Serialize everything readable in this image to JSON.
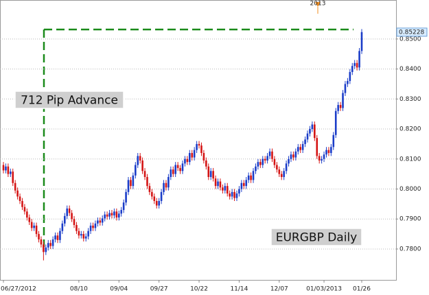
{
  "chart_data": {
    "type": "candlestick",
    "year_marker": "2013",
    "annotations": [
      "712 Pip Advance",
      "EURGBP Daily"
    ],
    "last_price": 0.85228,
    "up_color": "#1a3cc8",
    "down_color": "#d41414",
    "ylim": [
      0.7697,
      0.863
    ],
    "yticks": [
      {
        "value": 0.78,
        "label": "0.7800"
      },
      {
        "value": 0.79,
        "label": "0.7900"
      },
      {
        "value": 0.8,
        "label": "0.8000"
      },
      {
        "value": 0.81,
        "label": "0.8100"
      },
      {
        "value": 0.82,
        "label": "0.8200"
      },
      {
        "value": 0.83,
        "label": "0.8300"
      },
      {
        "value": 0.84,
        "label": "0.8400"
      },
      {
        "value": 0.85,
        "label": "0.8500"
      }
    ],
    "grid": true,
    "categories": [
      "06/27/2012",
      null,
      null,
      null,
      null,
      null,
      null,
      null,
      null,
      null,
      null,
      null,
      null,
      null,
      null,
      null,
      null,
      null,
      null,
      null,
      null,
      null,
      null,
      null,
      null,
      null,
      null,
      null,
      null,
      null,
      null,
      null,
      "08/10",
      null,
      null,
      null,
      null,
      null,
      null,
      null,
      null,
      null,
      null,
      null,
      null,
      null,
      null,
      null,
      null,
      "09/04",
      null,
      null,
      null,
      null,
      null,
      null,
      null,
      null,
      null,
      null,
      null,
      null,
      null,
      null,
      null,
      null,
      "09/27",
      null,
      null,
      null,
      null,
      null,
      null,
      null,
      null,
      null,
      null,
      null,
      null,
      null,
      null,
      null,
      null,
      "10/22",
      null,
      null,
      null,
      null,
      null,
      null,
      null,
      null,
      null,
      null,
      null,
      null,
      null,
      null,
      null,
      null,
      "11/14",
      null,
      null,
      null,
      null,
      null,
      null,
      null,
      null,
      null,
      null,
      null,
      null,
      null,
      null,
      null,
      null,
      "12/07",
      null,
      null,
      null,
      null,
      null,
      null,
      null,
      null,
      null,
      null,
      null,
      null,
      null,
      null,
      null,
      null,
      null,
      null,
      "01/03/2013",
      null,
      null,
      null,
      null,
      null,
      null,
      null,
      null,
      null,
      null,
      null,
      null,
      null,
      null,
      null,
      "01/26"
    ],
    "open": [
      0.808,
      0.8062,
      0.8075,
      0.805,
      0.8058,
      0.802,
      0.7995,
      0.7975,
      0.796,
      0.794,
      0.7925,
      0.7905,
      0.789,
      0.787,
      0.7878,
      0.785,
      0.7832,
      0.7815,
      0.779,
      0.7805,
      0.782,
      0.781,
      0.7832,
      0.7845,
      0.783,
      0.786,
      0.7885,
      0.791,
      0.7935,
      0.792,
      0.79,
      0.788,
      0.786,
      0.7845,
      0.785,
      0.7835,
      0.7842,
      0.786,
      0.7878,
      0.787,
      0.7885,
      0.7895,
      0.7888,
      0.7902,
      0.7915,
      0.7908,
      0.792,
      0.7912,
      0.7925,
      0.7905,
      0.7918,
      0.793,
      0.7955,
      0.799,
      0.803,
      0.801,
      0.8045,
      0.808,
      0.811,
      0.8095,
      0.806,
      0.804,
      0.801,
      0.799,
      0.7975,
      0.796,
      0.7945,
      0.796,
      0.799,
      0.802,
      0.8005,
      0.804,
      0.8065,
      0.805,
      0.808,
      0.807,
      0.806,
      0.8085,
      0.81,
      0.809,
      0.812,
      0.8105,
      0.813,
      0.815,
      0.8145,
      0.812,
      0.8095,
      0.8075,
      0.804,
      0.806,
      0.8035,
      0.801,
      0.8025,
      0.8005,
      0.7995,
      0.801,
      0.7985,
      0.7975,
      0.799,
      0.797,
      0.7985,
      0.8,
      0.802,
      0.801,
      0.803,
      0.8045,
      0.803,
      0.806,
      0.8075,
      0.809,
      0.808,
      0.81,
      0.8095,
      0.811,
      0.8125,
      0.81,
      0.808,
      0.8065,
      0.805,
      0.804,
      0.806,
      0.8085,
      0.81,
      0.8115,
      0.8105,
      0.8125,
      0.814,
      0.813,
      0.815,
      0.8165,
      0.8185,
      0.82,
      0.8215,
      0.817,
      0.811,
      0.8095,
      0.81,
      0.8115,
      0.813,
      0.812,
      0.814,
      0.818,
      0.826,
      0.828,
      0.827,
      0.832,
      0.835,
      0.836,
      0.839,
      0.841,
      0.842,
      0.8405,
      0.846
    ],
    "high": [
      0.809,
      0.8085,
      0.8085,
      0.8068,
      0.8068,
      0.803,
      0.8005,
      0.7985,
      0.797,
      0.795,
      0.7935,
      0.7915,
      0.79,
      0.7888,
      0.7888,
      0.786,
      0.7842,
      0.7825,
      0.7815,
      0.783,
      0.783,
      0.7842,
      0.7855,
      0.7855,
      0.787,
      0.7895,
      0.792,
      0.7945,
      0.7945,
      0.793,
      0.791,
      0.789,
      0.787,
      0.786,
      0.786,
      0.7852,
      0.787,
      0.7888,
      0.7888,
      0.7895,
      0.7905,
      0.7905,
      0.7912,
      0.7925,
      0.7925,
      0.793,
      0.793,
      0.7935,
      0.7935,
      0.7928,
      0.794,
      0.7965,
      0.8,
      0.804,
      0.804,
      0.8055,
      0.809,
      0.812,
      0.812,
      0.8105,
      0.807,
      0.805,
      0.802,
      0.8,
      0.7985,
      0.797,
      0.797,
      0.8,
      0.803,
      0.803,
      0.805,
      0.8075,
      0.8075,
      0.809,
      0.809,
      0.808,
      0.8095,
      0.811,
      0.811,
      0.813,
      0.813,
      0.814,
      0.816,
      0.816,
      0.8155,
      0.813,
      0.8105,
      0.8085,
      0.807,
      0.807,
      0.8045,
      0.8035,
      0.8035,
      0.8015,
      0.802,
      0.802,
      0.7995,
      0.8,
      0.8,
      0.7995,
      0.801,
      0.803,
      0.803,
      0.804,
      0.8055,
      0.8055,
      0.807,
      0.8085,
      0.81,
      0.81,
      0.811,
      0.811,
      0.812,
      0.8135,
      0.8135,
      0.811,
      0.809,
      0.8075,
      0.806,
      0.807,
      0.8095,
      0.811,
      0.8125,
      0.8125,
      0.8135,
      0.815,
      0.815,
      0.816,
      0.8175,
      0.8195,
      0.821,
      0.8225,
      0.8225,
      0.818,
      0.812,
      0.811,
      0.8125,
      0.814,
      0.814,
      0.815,
      0.819,
      0.827,
      0.829,
      0.829,
      0.833,
      0.836,
      0.837,
      0.84,
      0.842,
      0.843,
      0.843,
      0.847,
      0.8533
    ],
    "low": [
      0.8052,
      0.8052,
      0.804,
      0.804,
      0.801,
      0.7985,
      0.7965,
      0.795,
      0.793,
      0.7915,
      0.7895,
      0.788,
      0.786,
      0.786,
      0.784,
      0.7822,
      0.7805,
      0.7762,
      0.778,
      0.7795,
      0.78,
      0.78,
      0.7822,
      0.782,
      0.782,
      0.785,
      0.7875,
      0.79,
      0.791,
      0.789,
      0.787,
      0.785,
      0.7835,
      0.7835,
      0.7825,
      0.7825,
      0.7832,
      0.785,
      0.786,
      0.786,
      0.7875,
      0.7878,
      0.7878,
      0.7892,
      0.7898,
      0.7898,
      0.7902,
      0.7902,
      0.7895,
      0.7895,
      0.7908,
      0.792,
      0.7945,
      0.798,
      0.8,
      0.8,
      0.8035,
      0.807,
      0.8085,
      0.805,
      0.803,
      0.8,
      0.798,
      0.7965,
      0.795,
      0.7935,
      0.7935,
      0.795,
      0.798,
      0.7995,
      0.7995,
      0.803,
      0.804,
      0.804,
      0.806,
      0.805,
      0.805,
      0.8075,
      0.808,
      0.808,
      0.8095,
      0.8095,
      0.812,
      0.8135,
      0.811,
      0.8085,
      0.8065,
      0.803,
      0.803,
      0.8025,
      0.8,
      0.8,
      0.7995,
      0.7985,
      0.7985,
      0.7975,
      0.7965,
      0.7965,
      0.796,
      0.796,
      0.7975,
      0.799,
      0.8,
      0.8,
      0.802,
      0.802,
      0.802,
      0.805,
      0.8065,
      0.807,
      0.807,
      0.8085,
      0.8085,
      0.81,
      0.809,
      0.807,
      0.8055,
      0.804,
      0.803,
      0.803,
      0.805,
      0.8075,
      0.809,
      0.8095,
      0.8095,
      0.8115,
      0.812,
      0.812,
      0.814,
      0.8155,
      0.8175,
      0.819,
      0.816,
      0.81,
      0.8085,
      0.8085,
      0.809,
      0.8105,
      0.811,
      0.811,
      0.813,
      0.817,
      0.825,
      0.826,
      0.826,
      0.831,
      0.834,
      0.835,
      0.838,
      0.84,
      0.8395,
      0.8395,
      0.845
    ],
    "close": [
      0.8062,
      0.8075,
      0.805,
      0.8058,
      0.802,
      0.7995,
      0.7975,
      0.796,
      0.794,
      0.7925,
      0.7905,
      0.789,
      0.787,
      0.7878,
      0.785,
      0.7832,
      0.7815,
      0.779,
      0.7805,
      0.782,
      0.781,
      0.7832,
      0.7845,
      0.783,
      0.786,
      0.7885,
      0.791,
      0.7935,
      0.792,
      0.79,
      0.788,
      0.786,
      0.7845,
      0.785,
      0.7835,
      0.7842,
      0.786,
      0.7878,
      0.787,
      0.7885,
      0.7895,
      0.7888,
      0.7902,
      0.7915,
      0.7908,
      0.792,
      0.7912,
      0.7925,
      0.7905,
      0.7918,
      0.793,
      0.7955,
      0.799,
      0.803,
      0.801,
      0.8045,
      0.808,
      0.811,
      0.8095,
      0.806,
      0.804,
      0.801,
      0.799,
      0.7975,
      0.796,
      0.7945,
      0.796,
      0.799,
      0.802,
      0.8005,
      0.804,
      0.8065,
      0.805,
      0.808,
      0.807,
      0.806,
      0.8085,
      0.81,
      0.809,
      0.812,
      0.8105,
      0.813,
      0.815,
      0.8145,
      0.812,
      0.8095,
      0.8075,
      0.804,
      0.806,
      0.8035,
      0.801,
      0.8025,
      0.8005,
      0.7995,
      0.801,
      0.7985,
      0.7975,
      0.799,
      0.797,
      0.7985,
      0.8,
      0.802,
      0.801,
      0.803,
      0.8045,
      0.803,
      0.806,
      0.8075,
      0.809,
      0.808,
      0.81,
      0.8095,
      0.811,
      0.8125,
      0.81,
      0.808,
      0.8065,
      0.805,
      0.804,
      0.806,
      0.8085,
      0.81,
      0.8115,
      0.8105,
      0.8125,
      0.814,
      0.813,
      0.815,
      0.8165,
      0.8185,
      0.82,
      0.8215,
      0.817,
      0.811,
      0.8095,
      0.81,
      0.8115,
      0.813,
      0.812,
      0.814,
      0.818,
      0.826,
      0.828,
      0.827,
      0.832,
      0.835,
      0.836,
      0.839,
      0.841,
      0.842,
      0.8405,
      0.846,
      0.8523
    ]
  }
}
